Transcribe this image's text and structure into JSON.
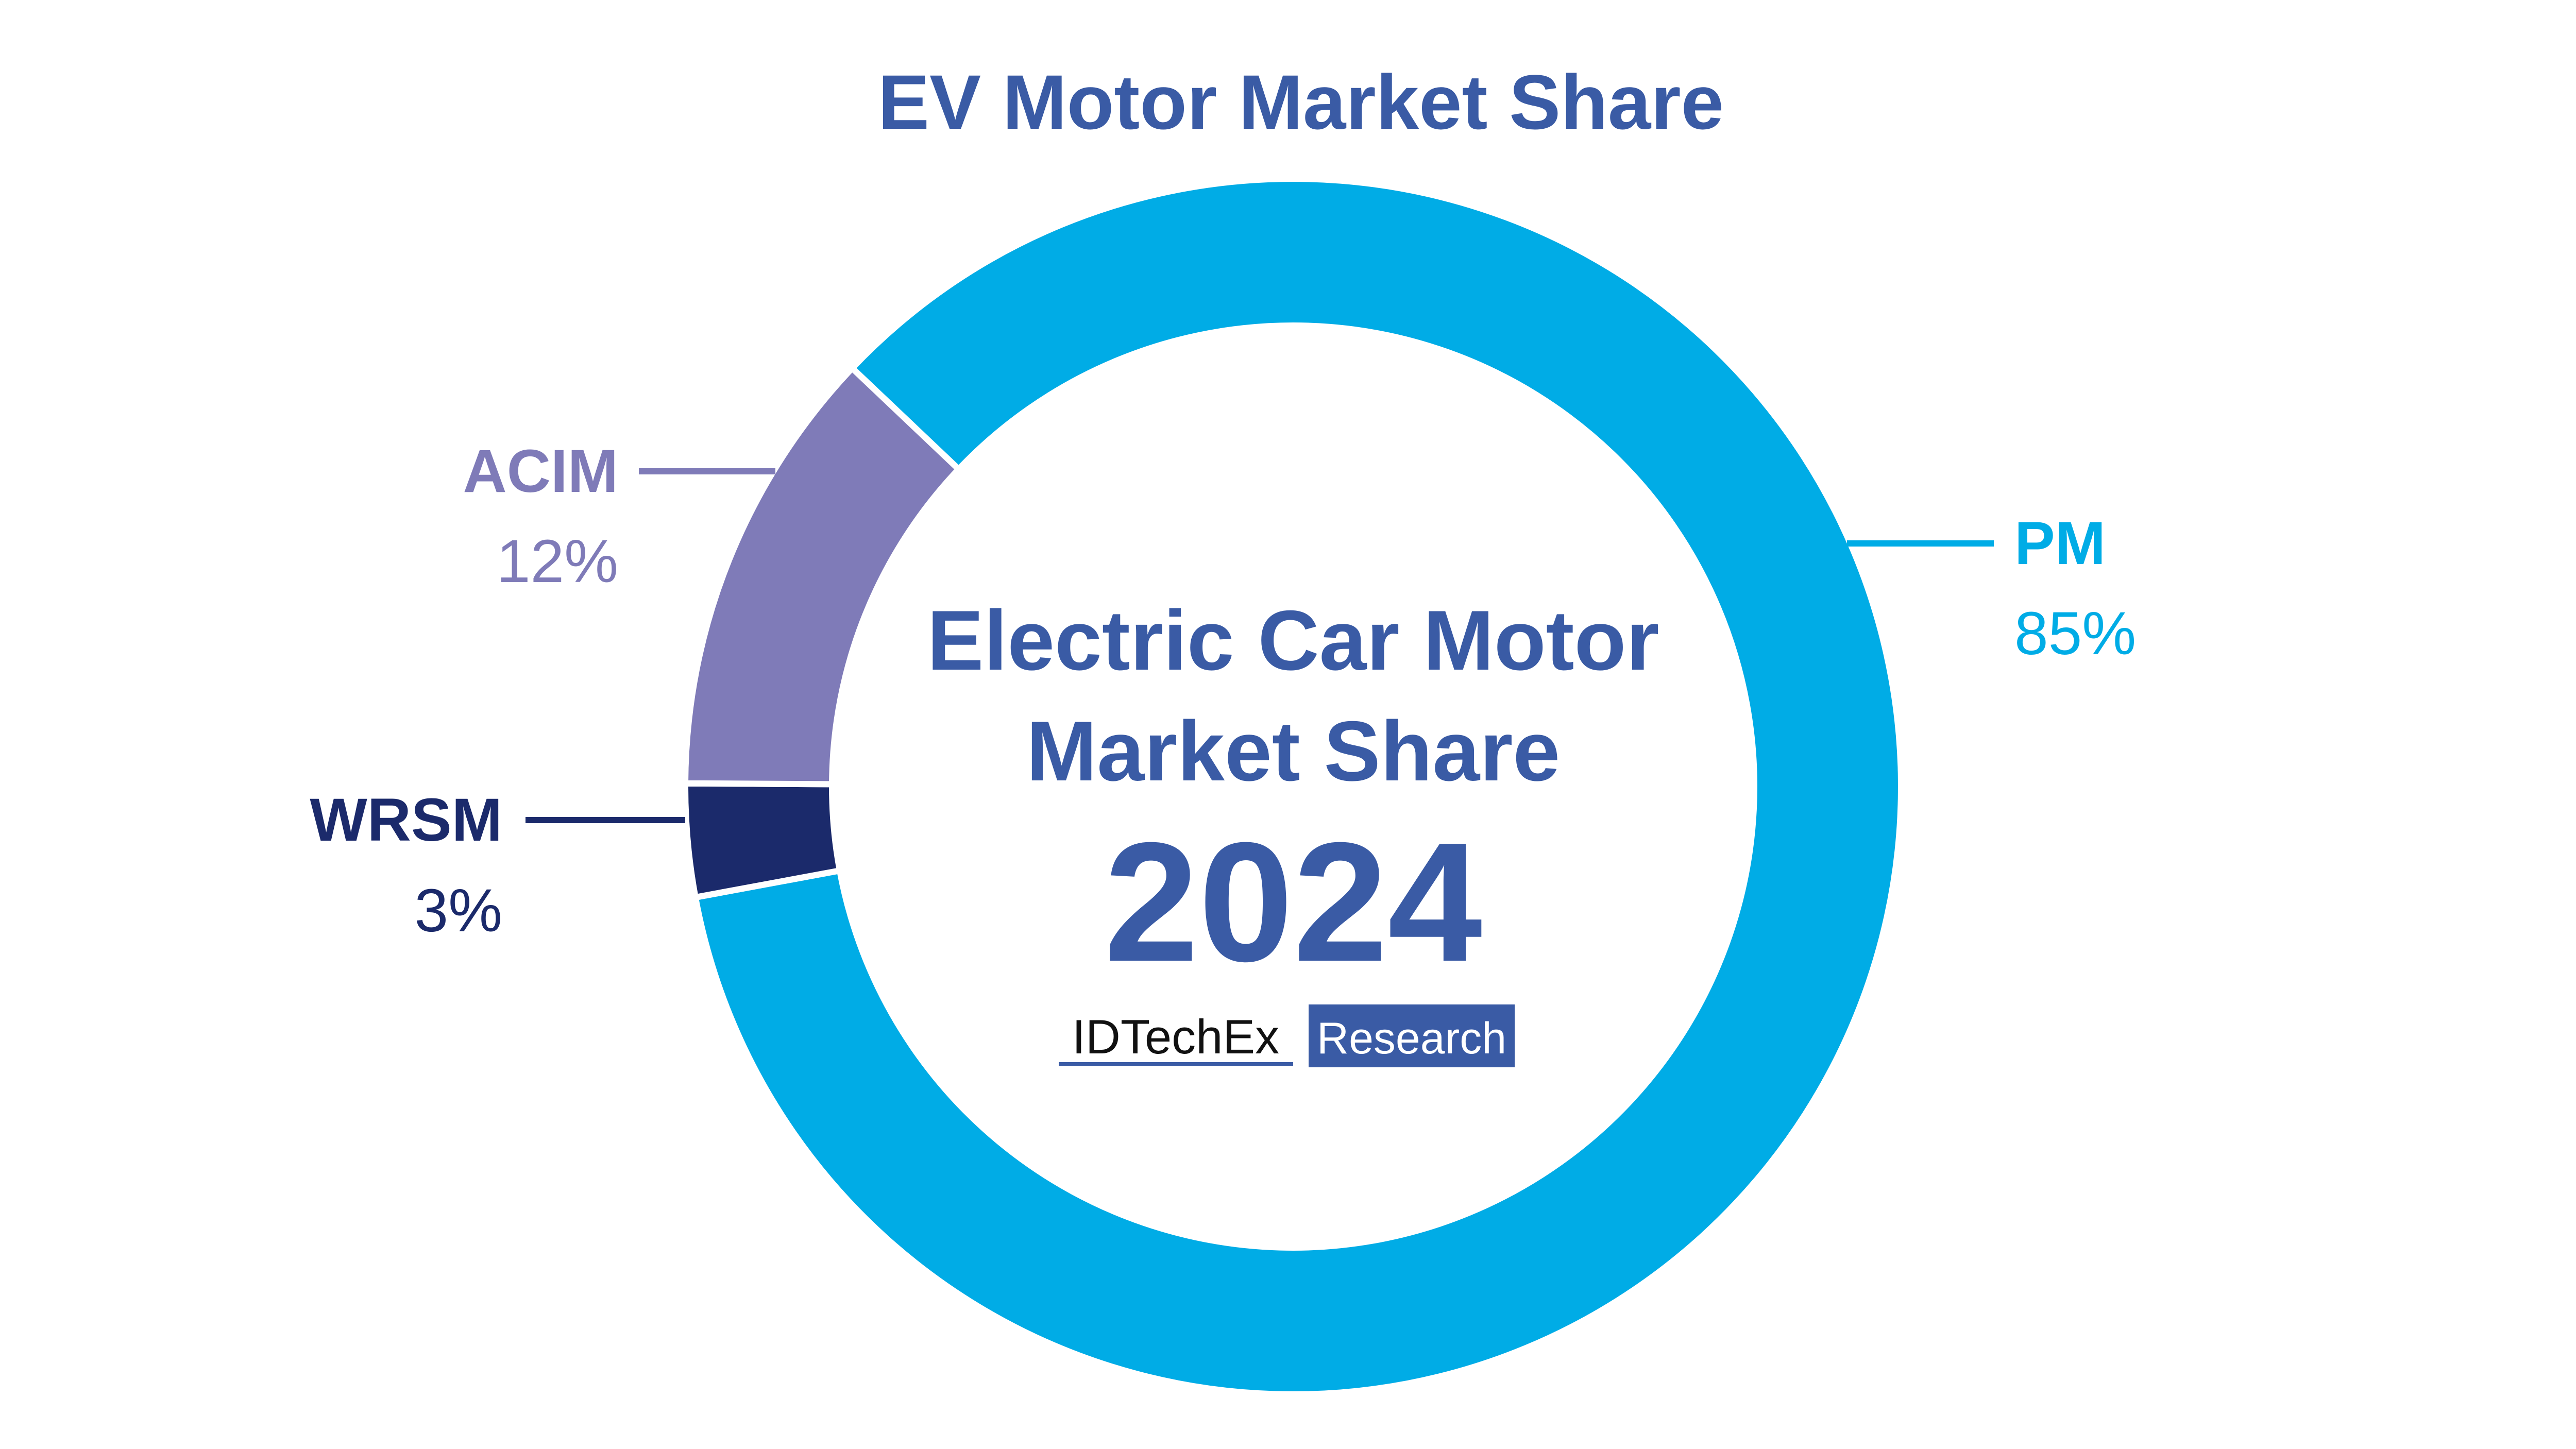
{
  "chart_data": {
    "type": "pie",
    "title": "EV Motor Market Share",
    "center": {
      "line1": "Electric Car Motor",
      "line2": "Market Share",
      "year": "2024"
    },
    "slices": [
      {
        "label": "PM",
        "value": 85,
        "value_label": "85%",
        "color": "#00ace6"
      },
      {
        "label": "WRSM",
        "value": 3,
        "value_label": "3%",
        "color": "#1b2a6b"
      },
      {
        "label": "ACIM",
        "value": 12,
        "value_label": "12%",
        "color": "#7f7bb8"
      }
    ],
    "legend_placement": "leader-lines"
  },
  "brand": {
    "name": "IDTechEx",
    "tag": "Research",
    "color": "#3a5ba5"
  },
  "colors": {
    "title": "#3a5ba5",
    "background": "#ffffff"
  }
}
